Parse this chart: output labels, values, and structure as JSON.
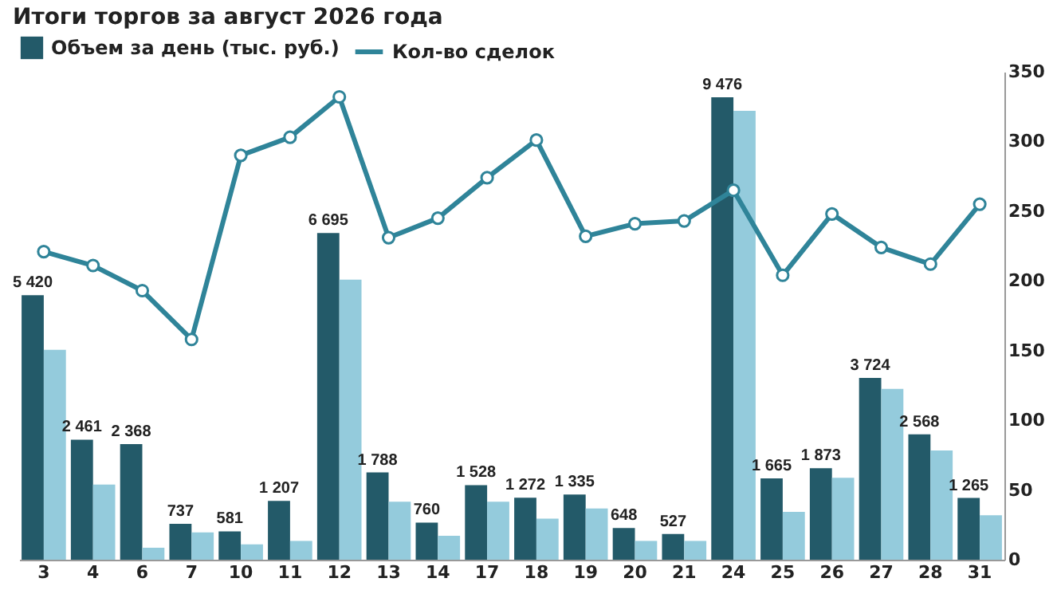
{
  "chart_data": {
    "type": "bar",
    "title": "Итоги торгов за август 2026 года",
    "categories": [
      "3",
      "4",
      "6",
      "7",
      "10",
      "11",
      "12",
      "13",
      "14",
      "17",
      "18",
      "19",
      "20",
      "21",
      "24",
      "25",
      "26",
      "27",
      "28",
      "31"
    ],
    "ylim": [
      0,
      10000
    ],
    "series": [
      {
        "name": "Объем за день (тыс. руб.)",
        "color": "#235a69",
        "values": [
          5420,
          2461,
          2368,
          737,
          581,
          1207,
          6695,
          1788,
          760,
          1528,
          1272,
          1335,
          648,
          527,
          9476,
          1665,
          1873,
          3724,
          2568,
          1265
        ],
        "value_labels": [
          "5 420",
          "2 461",
          "2 368",
          "737",
          "581",
          "1 207",
          "6 695",
          "1 788",
          "760",
          "1 528",
          "1 272",
          "1 335",
          "648",
          "527",
          "9 476",
          "1 665",
          "1 873",
          "3 724",
          "2 568",
          "1 265"
        ]
      },
      {
        "color": "#94cbdc",
        "values": [
          4300,
          1540,
          245,
          560,
          315,
          385,
          5740,
          1190,
          490,
          1190,
          840,
          1050,
          385,
          385,
          9200,
          980,
          1680,
          3500,
          2240,
          910
        ]
      },
      {
        "name": "Кол-во сделок",
        "type": "line",
        "axis": "y2",
        "color": "#2f8499",
        "marker": "circle",
        "values": [
          221,
          211,
          193,
          158,
          290,
          303,
          332,
          231,
          245,
          274,
          301,
          232,
          241,
          243,
          265,
          204,
          248,
          224,
          212,
          255
        ]
      }
    ],
    "y2lim": [
      0,
      350
    ],
    "y2ticks": [
      0,
      50,
      100,
      150,
      200,
      250,
      300,
      350
    ],
    "legend": "top left",
    "grid": false
  }
}
